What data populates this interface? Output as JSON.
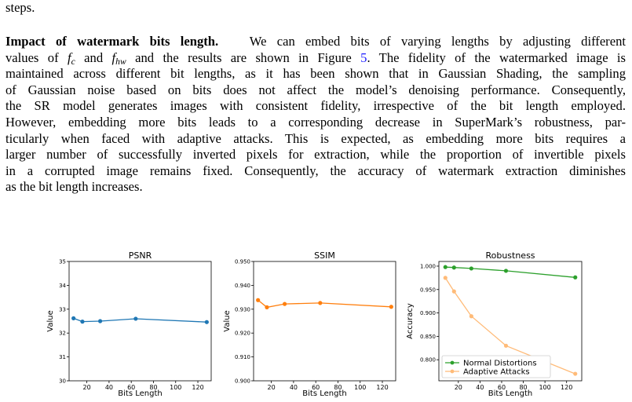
{
  "paragraph_intro_tail": "steps.",
  "paragraph": {
    "heading": "Impact of watermark bits length.",
    "line1_a": "We can embed bits of varying lengths by adjusting different",
    "line2_a": "values of",
    "sym_fc": "f",
    "sub_c": "c",
    "line2_and": "and",
    "sym_fhw": "f",
    "sub_hw": "hw",
    "line2_b": "and the results are shown in Figure",
    "figure_ref": "5",
    "line2_c": ". The fidelity of the watermarked image is",
    "line3": "maintained across different bit lengths, as it has been shown that in Gaussian Shading, the sampling",
    "line4": "of Gaussian noise based on bits does not affect the model’s denoising performance. Consequently,",
    "line5": "the SR model generates images with consistent fidelity, irrespective of the bit length employed.",
    "line6": "However, embedding more bits leads to a corresponding decrease in SuperMark’s robustness, par-",
    "line7": "ticularly when faced with adaptive attacks. This is expected, as embedding more bits requires a",
    "line8": "larger number of successfully inverted pixels for extraction, while the proportion of invertible pixels",
    "line9": "in a corrupted image remains fixed. Consequently, the accuracy of watermark extraction diminishes",
    "line10": "as the bit length increases."
  },
  "colors": {
    "blue": "#1f77b4",
    "orange": "#ff7f0e",
    "green": "#2ca02c",
    "light_orange": "#ffbb78",
    "link": "#1a1aff"
  },
  "chart_data": [
    {
      "type": "line",
      "title": "PSNR",
      "xlabel": "Bits Length",
      "ylabel": "Value",
      "x": [
        8,
        16,
        32,
        64,
        128
      ],
      "xlim": [
        4,
        132
      ],
      "ylim": [
        30,
        35
      ],
      "xticks": [
        20,
        40,
        60,
        80,
        100,
        120
      ],
      "xtick_labels": [
        "20",
        "40",
        "60",
        "80",
        "100",
        "120"
      ],
      "yticks": [
        30,
        31,
        32,
        33,
        34,
        35
      ],
      "ytick_labels": [
        "30",
        "31",
        "32",
        "33",
        "34",
        "35"
      ],
      "series": [
        {
          "values": [
            32.62,
            32.48,
            32.5,
            32.6,
            32.46
          ],
          "color": "#1f77b4"
        }
      ],
      "grid": false
    },
    {
      "type": "line",
      "title": "SSIM",
      "xlabel": "Bits Length",
      "ylabel": "Value",
      "x": [
        8,
        16,
        32,
        64,
        128
      ],
      "xlim": [
        4,
        132
      ],
      "ylim": [
        0.9,
        0.95
      ],
      "xticks": [
        20,
        40,
        60,
        80,
        100,
        120
      ],
      "xtick_labels": [
        "20",
        "40",
        "60",
        "80",
        "100",
        "120"
      ],
      "yticks": [
        0.9,
        0.91,
        0.92,
        0.93,
        0.94,
        0.95
      ],
      "ytick_labels": [
        "0.900",
        "0.910",
        "0.920",
        "0.930",
        "0.940",
        "0.950"
      ],
      "series": [
        {
          "values": [
            0.9338,
            0.9308,
            0.9322,
            0.9326,
            0.931
          ],
          "color": "#ff7f0e"
        }
      ],
      "grid": false
    },
    {
      "type": "line",
      "title": "Robustness",
      "xlabel": "Bits Length",
      "ylabel": "Accuracy",
      "x": [
        8,
        16,
        32,
        64,
        128
      ],
      "xlim": [
        2,
        134
      ],
      "ylim": [
        0.755,
        1.01
      ],
      "xticks": [
        20,
        40,
        60,
        80,
        100,
        120
      ],
      "xtick_labels": [
        "20",
        "40",
        "60",
        "80",
        "100",
        "120"
      ],
      "yticks": [
        0.8,
        0.85,
        0.9,
        0.95,
        1.0
      ],
      "ytick_labels": [
        "0.800",
        "0.850",
        "0.900",
        "0.950",
        "1.000"
      ],
      "series": [
        {
          "name": "Normal Distortions",
          "values": [
            0.998,
            0.997,
            0.995,
            0.99,
            0.976
          ],
          "color": "#2ca02c"
        },
        {
          "name": "Adaptive Attacks",
          "values": [
            0.975,
            0.946,
            0.893,
            0.83,
            0.77
          ],
          "color": "#ffbb78"
        }
      ],
      "legend": "lower-left",
      "grid": false
    }
  ]
}
